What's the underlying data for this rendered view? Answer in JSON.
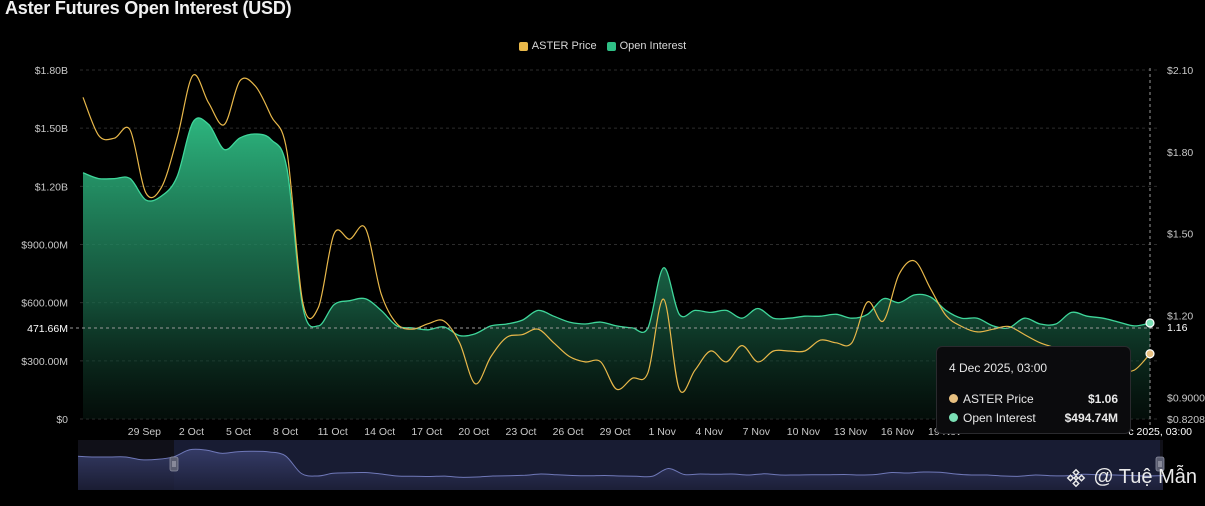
{
  "title": "Aster Futures Open Interest (USD)",
  "colors": {
    "price": "#e8b84a",
    "oi": "#2fbf85",
    "background": "#000000"
  },
  "legend": [
    {
      "label": "ASTER Price",
      "color": "#e8b84a"
    },
    {
      "label": "Open Interest",
      "color": "#2fbf85"
    }
  ],
  "tooltip": {
    "date": "4 Dec 2025, 03:00",
    "rows": [
      {
        "label": "ASTER Price",
        "value": "$1.06",
        "color": "#e8c080"
      },
      {
        "label": "Open Interest",
        "value": "$494.74M",
        "color": "#7be0b5"
      }
    ]
  },
  "crosshair": {
    "y_value_label": "471.66M",
    "x_date_label": "c 2025, 03:00",
    "price_marker_label": "1.16"
  },
  "watermark": {
    "text": "@ Tuệ Mẫn",
    "icon": "binance-logo-icon"
  },
  "chart_data": {
    "type": "area",
    "title": "Aster Futures Open Interest (USD)",
    "x_ticks": [
      "29 Sep",
      "2 Oct",
      "5 Oct",
      "8 Oct",
      "11 Oct",
      "14 Oct",
      "17 Oct",
      "20 Oct",
      "23 Oct",
      "26 Oct",
      "29 Oct",
      "1 Nov",
      "4 Nov",
      "7 Nov",
      "10 Nov",
      "13 Nov",
      "16 Nov",
      "19 Nov"
    ],
    "y_left_ticks": [
      "$0",
      "$300.00M",
      "$600.00M",
      "$900.00M",
      "$1.20B",
      "$1.50B",
      "$1.80B"
    ],
    "y_left_range": [
      0,
      1800
    ],
    "y_right_ticks": [
      "$0.8208",
      "$0.9000",
      "$1.20",
      "$1.50",
      "$1.80",
      "$2.10"
    ],
    "y_right_range": [
      0.8208,
      2.1
    ],
    "grid": true,
    "legend_position": "top-center",
    "series": [
      {
        "name": "Open Interest",
        "unit": "USD millions",
        "axis": "left",
        "x": [
          "27 Sep",
          "28 Sep",
          "29 Sep",
          "30 Sep",
          "1 Oct",
          "2 Oct",
          "3 Oct",
          "4 Oct",
          "5 Oct",
          "6 Oct",
          "7 Oct",
          "8 Oct",
          "9 Oct",
          "10 Oct",
          "11 Oct",
          "12 Oct",
          "13 Oct",
          "14 Oct",
          "15 Oct",
          "16 Oct",
          "17 Oct",
          "18 Oct",
          "19 Oct",
          "20 Oct",
          "21 Oct",
          "22 Oct",
          "23 Oct",
          "24 Oct",
          "25 Oct",
          "26 Oct",
          "27 Oct",
          "28 Oct",
          "29 Oct",
          "30 Oct",
          "31 Oct",
          "1 Nov",
          "2 Nov",
          "3 Nov",
          "4 Nov",
          "5 Nov",
          "6 Nov",
          "7 Nov",
          "8 Nov",
          "9 Nov",
          "10 Nov",
          "11 Nov",
          "12 Nov",
          "13 Nov",
          "14 Nov",
          "15 Nov",
          "16 Nov",
          "17 Nov",
          "18 Nov",
          "19 Nov",
          "20 Nov",
          "21 Nov",
          "22 Nov",
          "23 Nov",
          "24 Nov",
          "25 Nov",
          "26 Nov",
          "27 Nov",
          "28 Nov",
          "29 Nov",
          "30 Nov",
          "1 Dec",
          "2 Dec",
          "3 Dec",
          "4 Dec"
        ],
        "values": [
          1270,
          1240,
          1240,
          1240,
          1130,
          1150,
          1250,
          1530,
          1520,
          1390,
          1450,
          1470,
          1440,
          1290,
          580,
          480,
          590,
          610,
          620,
          560,
          480,
          470,
          460,
          475,
          430,
          440,
          480,
          490,
          510,
          560,
          530,
          500,
          490,
          500,
          480,
          470,
          470,
          780,
          540,
          560,
          550,
          560,
          520,
          570,
          520,
          520,
          530,
          530,
          540,
          520,
          540,
          620,
          600,
          640,
          630,
          560,
          520,
          520,
          480,
          470,
          520,
          490,
          490,
          550,
          530,
          520,
          500,
          480,
          495
        ]
      },
      {
        "name": "ASTER Price",
        "unit": "USD",
        "axis": "right",
        "x": [
          "27 Sep",
          "28 Sep",
          "29 Sep",
          "30 Sep",
          "1 Oct",
          "2 Oct",
          "3 Oct",
          "4 Oct",
          "5 Oct",
          "6 Oct",
          "7 Oct",
          "8 Oct",
          "9 Oct",
          "10 Oct",
          "11 Oct",
          "12 Oct",
          "13 Oct",
          "14 Oct",
          "15 Oct",
          "16 Oct",
          "17 Oct",
          "18 Oct",
          "19 Oct",
          "20 Oct",
          "21 Oct",
          "22 Oct",
          "23 Oct",
          "24 Oct",
          "25 Oct",
          "26 Oct",
          "27 Oct",
          "28 Oct",
          "29 Oct",
          "30 Oct",
          "31 Oct",
          "1 Nov",
          "2 Nov",
          "3 Nov",
          "4 Nov",
          "5 Nov",
          "6 Nov",
          "7 Nov",
          "8 Nov",
          "9 Nov",
          "10 Nov",
          "11 Nov",
          "12 Nov",
          "13 Nov",
          "14 Nov",
          "15 Nov",
          "16 Nov",
          "17 Nov",
          "18 Nov",
          "19 Nov",
          "20 Nov",
          "21 Nov",
          "22 Nov",
          "23 Nov",
          "24 Nov",
          "25 Nov",
          "26 Nov",
          "27 Nov",
          "28 Nov",
          "29 Nov",
          "30 Nov",
          "1 Dec",
          "2 Dec",
          "3 Dec",
          "4 Dec"
        ],
        "values": [
          2.0,
          1.86,
          1.85,
          1.88,
          1.65,
          1.67,
          1.85,
          2.08,
          1.98,
          1.9,
          2.06,
          2.04,
          1.93,
          1.8,
          1.25,
          1.23,
          1.5,
          1.48,
          1.52,
          1.28,
          1.17,
          1.15,
          1.17,
          1.18,
          1.1,
          0.95,
          1.05,
          1.12,
          1.13,
          1.15,
          1.1,
          1.05,
          1.03,
          1.03,
          0.93,
          0.97,
          0.99,
          1.26,
          0.93,
          1.0,
          1.07,
          1.03,
          1.09,
          1.03,
          1.07,
          1.07,
          1.07,
          1.11,
          1.1,
          1.1,
          1.25,
          1.18,
          1.35,
          1.4,
          1.3,
          1.2,
          1.16,
          1.14,
          1.15,
          1.16,
          1.13,
          1.1,
          1.08,
          1.05,
          1.03,
          1.01,
          1.0,
          1.0,
          1.06
        ]
      }
    ]
  }
}
